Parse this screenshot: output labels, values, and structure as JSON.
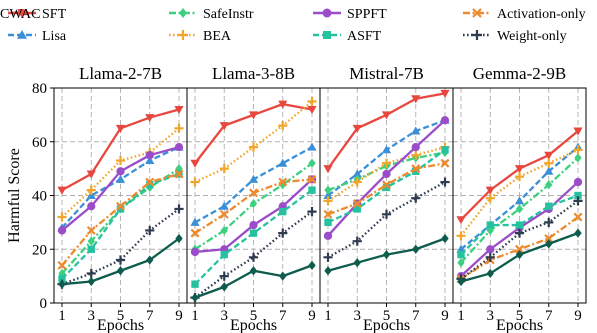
{
  "legend": {
    "items": [
      {
        "name": "SFT",
        "color": "#e8473f",
        "style": "solid",
        "marker": "triangle-down"
      },
      {
        "name": "Lisa",
        "color": "#3b8fd6",
        "style": "dashed",
        "marker": "triangle-up"
      },
      {
        "name": "SafeInstr",
        "color": "#3ed07f",
        "style": "dashdot",
        "marker": "diamond"
      },
      {
        "name": "BEA",
        "color": "#f2a52b",
        "style": "dotted",
        "marker": "plus"
      },
      {
        "name": "SPPFT",
        "color": "#9b4dc9",
        "style": "solid",
        "marker": "circle"
      },
      {
        "name": "ASFT",
        "color": "#26c2a0",
        "style": "dashed",
        "marker": "square"
      },
      {
        "name": "Activation-only",
        "color": "#ee8a2e",
        "style": "dashdot",
        "marker": "x"
      },
      {
        "name": "Weight-only",
        "color": "#2f3b4f",
        "style": "dotted",
        "marker": "plus"
      },
      {
        "name": "CWAC",
        "color": "#0d5c4d",
        "style": "solid",
        "marker": "diamond"
      }
    ]
  },
  "chart_data": [
    {
      "type": "line",
      "title": "Llama-2-7B",
      "xlabel": "Epochs",
      "ylabel": "Harmful Score",
      "x": [
        1,
        3,
        5,
        7,
        9
      ],
      "xticks": [
        "1",
        "3",
        "5",
        "7",
        "9"
      ],
      "ylim": [
        0,
        80
      ],
      "yticks": [
        "0",
        "20",
        "40",
        "60",
        "80"
      ],
      "grid": true,
      "series": [
        {
          "name": "SFT",
          "values": [
            42,
            48,
            65,
            69,
            72
          ]
        },
        {
          "name": "Lisa",
          "values": [
            28,
            40,
            46,
            53,
            58
          ]
        },
        {
          "name": "SafeInstr",
          "values": [
            11,
            23,
            35,
            43,
            50
          ]
        },
        {
          "name": "BEA",
          "values": [
            32,
            42,
            53,
            56,
            65
          ]
        },
        {
          "name": "SPPFT",
          "values": [
            27,
            36,
            49,
            55,
            58
          ]
        },
        {
          "name": "ASFT",
          "values": [
            9,
            20,
            35,
            44,
            48
          ]
        },
        {
          "name": "Activation-only",
          "values": [
            14,
            27,
            36,
            45,
            48
          ]
        },
        {
          "name": "Weight-only",
          "values": [
            7,
            11,
            16,
            27,
            35
          ]
        },
        {
          "name": "CWAC",
          "values": [
            7,
            8,
            12,
            16,
            24
          ]
        }
      ]
    },
    {
      "type": "line",
      "title": "Llama-3-8B",
      "xlabel": "Epochs",
      "ylabel": "",
      "x": [
        1,
        3,
        5,
        7,
        9
      ],
      "xticks": [
        "1",
        "3",
        "5",
        "7",
        "9"
      ],
      "ylim": [
        0,
        80
      ],
      "yticks": [],
      "grid": true,
      "series": [
        {
          "name": "SFT",
          "values": [
            52,
            66,
            70,
            74,
            72
          ]
        },
        {
          "name": "Lisa",
          "values": [
            30,
            36,
            46,
            52,
            58
          ]
        },
        {
          "name": "SafeInstr",
          "values": [
            20,
            27,
            37,
            44,
            52
          ]
        },
        {
          "name": "BEA",
          "values": [
            45,
            50,
            58,
            66,
            75
          ]
        },
        {
          "name": "SPPFT",
          "values": [
            19,
            20,
            29,
            36,
            46
          ]
        },
        {
          "name": "ASFT",
          "values": [
            7,
            18,
            26,
            34,
            42
          ]
        },
        {
          "name": "Activation-only",
          "values": [
            26,
            33,
            41,
            45,
            46
          ]
        },
        {
          "name": "Weight-only",
          "values": [
            2,
            10,
            17,
            26,
            34
          ]
        },
        {
          "name": "CWAC",
          "values": [
            2,
            6,
            12,
            10,
            14
          ]
        }
      ]
    },
    {
      "type": "line",
      "title": "Mistral-7B",
      "xlabel": "Epochs",
      "ylabel": "",
      "x": [
        1,
        3,
        5,
        7,
        9
      ],
      "xticks": [
        "1",
        "3",
        "5",
        "7",
        "9"
      ],
      "ylim": [
        0,
        80
      ],
      "yticks": [],
      "grid": true,
      "series": [
        {
          "name": "SFT",
          "values": [
            50,
            65,
            70,
            76,
            78
          ]
        },
        {
          "name": "Lisa",
          "values": [
            40,
            48,
            57,
            64,
            68
          ]
        },
        {
          "name": "SafeInstr",
          "values": [
            42,
            46,
            51,
            54,
            56
          ]
        },
        {
          "name": "BEA",
          "values": [
            38,
            45,
            52,
            55,
            58
          ]
        },
        {
          "name": "SPPFT",
          "values": [
            25,
            37,
            48,
            58,
            68
          ]
        },
        {
          "name": "ASFT",
          "values": [
            30,
            35,
            43,
            49,
            57
          ]
        },
        {
          "name": "Activation-only",
          "values": [
            33,
            37,
            44,
            50,
            52
          ]
        },
        {
          "name": "Weight-only",
          "values": [
            17,
            23,
            33,
            39,
            45
          ]
        },
        {
          "name": "CWAC",
          "values": [
            12,
            15,
            18,
            20,
            24
          ]
        }
      ]
    },
    {
      "type": "line",
      "title": "Gemma-2-9B",
      "xlabel": "Epochs",
      "ylabel": "",
      "x": [
        1,
        3,
        5,
        7,
        9
      ],
      "xticks": [
        "1",
        "3",
        "5",
        "7",
        "9"
      ],
      "ylim": [
        0,
        80
      ],
      "yticks": [],
      "grid": true,
      "series": [
        {
          "name": "SFT",
          "values": [
            31,
            42,
            50,
            55,
            64
          ]
        },
        {
          "name": "Lisa",
          "values": [
            20,
            29,
            38,
            49,
            58
          ]
        },
        {
          "name": "SafeInstr",
          "values": [
            15,
            27,
            35,
            44,
            54
          ]
        },
        {
          "name": "BEA",
          "values": [
            25,
            39,
            47,
            52,
            57
          ]
        },
        {
          "name": "SPPFT",
          "values": [
            10,
            20,
            28,
            35,
            45
          ]
        },
        {
          "name": "ASFT",
          "values": [
            18,
            29,
            29,
            36,
            40
          ]
        },
        {
          "name": "Activation-only",
          "values": [
            9,
            16,
            20,
            24,
            32
          ]
        },
        {
          "name": "Weight-only",
          "values": [
            9,
            17,
            26,
            30,
            38
          ]
        },
        {
          "name": "CWAC",
          "values": [
            8,
            11,
            18,
            22,
            26
          ]
        }
      ]
    }
  ]
}
